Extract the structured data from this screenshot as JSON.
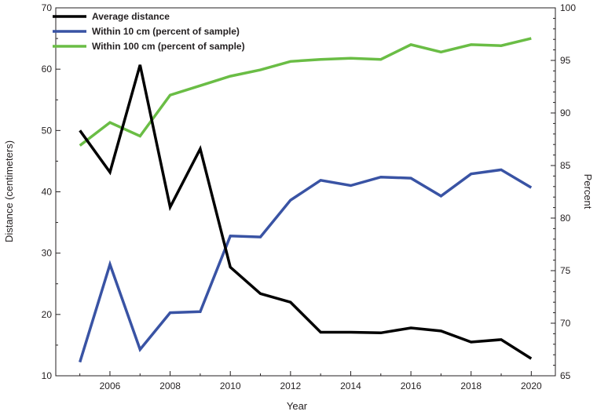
{
  "chart_data": {
    "type": "line",
    "xlabel": "Year",
    "ylabel_left": "Distance (centimeters)",
    "ylabel_right": "Percent",
    "xlim": [
      2004.2,
      2020.8
    ],
    "ylim_left": [
      10,
      70
    ],
    "ylim_right": [
      65,
      100
    ],
    "x_ticks": [
      2006,
      2008,
      2010,
      2012,
      2014,
      2016,
      2018,
      2020
    ],
    "y_left_ticks": [
      10,
      20,
      30,
      40,
      50,
      60,
      70
    ],
    "y_right_ticks": [
      65,
      70,
      75,
      80,
      85,
      90,
      95,
      100
    ],
    "grid": false,
    "legend_position": "top-left",
    "x": [
      2005,
      2006,
      2007,
      2008,
      2009,
      2010,
      2011,
      2012,
      2013,
      2014,
      2015,
      2016,
      2017,
      2018,
      2019,
      2020
    ],
    "series": [
      {
        "name": "Average distance",
        "axis": "left",
        "color": "#000000",
        "values": [
          50.0,
          43.2,
          60.7,
          37.5,
          47.0,
          27.7,
          23.4,
          22.0,
          17.1,
          17.1,
          17.0,
          17.8,
          17.3,
          15.5,
          15.9,
          12.8
        ]
      },
      {
        "name": "Within 10 cm (percent of sample)",
        "axis": "right",
        "color": "#3953a4",
        "values": [
          66.3,
          75.6,
          67.5,
          71.0,
          71.1,
          78.3,
          78.2,
          81.7,
          83.6,
          83.1,
          83.9,
          83.8,
          82.1,
          84.2,
          84.6,
          82.9
        ]
      },
      {
        "name": "Within 100 cm (percent of sample)",
        "axis": "right",
        "color": "#6abd45",
        "values": [
          86.9,
          89.1,
          87.8,
          91.7,
          92.6,
          93.5,
          94.1,
          94.9,
          95.1,
          95.2,
          95.1,
          96.5,
          95.8,
          96.5,
          96.4,
          97.1
        ]
      }
    ]
  }
}
